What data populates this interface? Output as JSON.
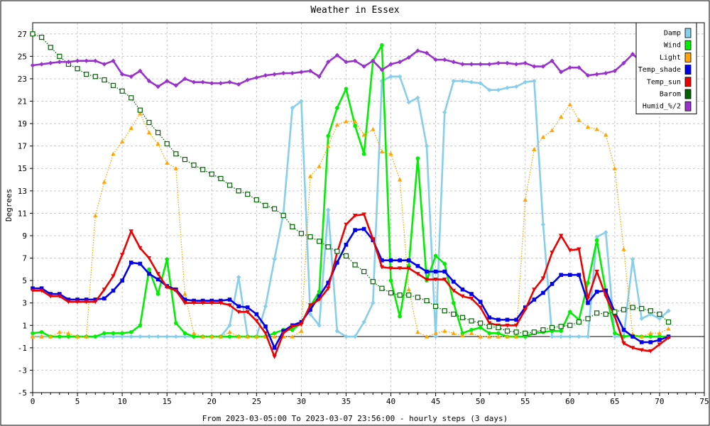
{
  "chart_data": {
    "type": "line",
    "title": "Weather in Essex",
    "xlabel": "From 2023-03-05:00 To 2023-03-07 23:56:00 - hourly steps (3 days)",
    "ylabel": "Degrees",
    "xlim": [
      0,
      75
    ],
    "ylim": [
      -5,
      28
    ],
    "xticks": [
      0,
      5,
      10,
      15,
      20,
      25,
      30,
      35,
      40,
      45,
      50,
      55,
      60,
      65,
      70,
      75
    ],
    "yticks": [
      -5,
      -3,
      -1,
      1,
      3,
      5,
      7,
      9,
      11,
      13,
      15,
      17,
      19,
      21,
      23,
      25,
      27
    ],
    "grid": true,
    "legend_position": "top-right",
    "series": [
      {
        "name": "Damp",
        "color": "#87ceeb",
        "marker": "diamond",
        "dash": "solid",
        "values": [
          0,
          0,
          0,
          0,
          0,
          0,
          0,
          0,
          0,
          0,
          0,
          0,
          0,
          0,
          0,
          0,
          0,
          0,
          0,
          0,
          0,
          0,
          1,
          5.3,
          0,
          0,
          2.7,
          6.9,
          11,
          20.4,
          21,
          2,
          1,
          11.3,
          0.5,
          0,
          0,
          1.3,
          3,
          22.8,
          23.2,
          23.2,
          20.9,
          21.3,
          17,
          0,
          20,
          22.8,
          22.8,
          22.7,
          22.6,
          22,
          22,
          22.2,
          22.3,
          22.7,
          22.8,
          10,
          0,
          0,
          0,
          0,
          0,
          8.9,
          9.3,
          0,
          0,
          6.9,
          1.6,
          2,
          1.6,
          2.3
        ]
      },
      {
        "name": "Wind",
        "color": "#00ee00",
        "marker": "circle",
        "dash": "solid",
        "values": [
          0.3,
          0.4,
          0,
          0,
          0,
          0,
          0,
          0,
          0.3,
          0.3,
          0.3,
          0.4,
          1,
          6,
          3.8,
          6.9,
          1.2,
          0.3,
          0,
          0,
          0,
          0,
          0,
          0,
          0,
          0,
          0,
          0.3,
          0.6,
          0.6,
          1.2,
          2.7,
          4,
          17.9,
          20.4,
          22.1,
          18.8,
          16.3,
          24.6,
          26,
          5,
          1.8,
          6.3,
          15.9,
          5,
          7.2,
          6.5,
          3,
          0.3,
          0.6,
          0.8,
          0.3,
          0.3,
          0,
          0,
          0,
          0.3,
          0.4,
          0.5,
          0.5,
          2.2,
          1.5,
          4.8,
          8.6,
          4,
          0.3,
          0,
          0.1,
          0,
          0,
          0,
          0
        ]
      },
      {
        "name": "Light",
        "color": "#ffa500",
        "marker": "triangle-up",
        "dash": "dotted",
        "values": [
          0,
          0,
          0,
          0.4,
          0.3,
          0,
          0,
          10.8,
          13.8,
          16.3,
          17.4,
          18.6,
          19.9,
          18.2,
          17.2,
          15.5,
          15,
          3.8,
          0.3,
          0,
          0,
          0,
          0.4,
          0,
          0,
          0,
          0,
          0,
          0,
          0,
          0.5,
          14.3,
          15.2,
          17,
          18.9,
          19.2,
          19.2,
          18,
          18.5,
          16.5,
          16.3,
          14,
          4.2,
          0.4,
          0,
          0.3,
          0.5,
          0.3,
          0.1,
          0.3,
          0,
          0,
          0,
          0,
          0,
          12.2,
          16.7,
          17.8,
          18.4,
          19.6,
          20.7,
          19.3,
          18.7,
          18.5,
          18,
          15,
          7.8,
          0.2,
          0,
          0.3,
          0.3,
          0.7
        ]
      },
      {
        "name": "Temp_shade",
        "color": "#0000ee",
        "marker": "square",
        "dash": "solid",
        "values": [
          4.3,
          4.3,
          3.8,
          3.8,
          3.3,
          3.3,
          3.3,
          3.3,
          3.4,
          4.1,
          5,
          6.6,
          6.5,
          5.6,
          5.1,
          4.5,
          4.2,
          3.3,
          3.2,
          3.2,
          3.2,
          3.2,
          3.3,
          2.7,
          2.6,
          2,
          0.9,
          -1,
          0.5,
          1,
          1.3,
          2.4,
          3.6,
          4.8,
          6.6,
          8.2,
          9.5,
          9.6,
          8.6,
          6.8,
          6.8,
          6.8,
          6.8,
          6.3,
          5.8,
          5.8,
          5.8,
          4.9,
          4.2,
          3.8,
          3.1,
          1.7,
          1.5,
          1.5,
          1.5,
          2.6,
          3.3,
          3.9,
          4.7,
          5.5,
          5.5,
          5.5,
          3,
          4,
          4.1,
          2.2,
          0.6,
          0,
          -0.5,
          -0.5,
          -0.3,
          0
        ]
      },
      {
        "name": "Temp_sun",
        "color": "#ee0000",
        "marker": "triangle-down",
        "dash": "solid",
        "values": [
          4.1,
          4.1,
          3.6,
          3.6,
          3.1,
          3.1,
          3.1,
          3.1,
          4.2,
          5.4,
          7.3,
          9.4,
          7.9,
          7,
          5.6,
          4.4,
          4.1,
          3,
          3,
          3,
          3,
          3,
          2.8,
          2.2,
          2.2,
          1.4,
          0.3,
          -1.8,
          0.3,
          0.9,
          1.1,
          2.8,
          3.3,
          4.3,
          7.5,
          10,
          10.8,
          10.9,
          8.7,
          6.2,
          6.1,
          6.1,
          6.1,
          5.6,
          5.1,
          5.1,
          5.1,
          4.1,
          3.6,
          3.4,
          2.6,
          1.2,
          1,
          1,
          1,
          2.4,
          4.2,
          5.2,
          7.5,
          9,
          7.7,
          7.8,
          3.4,
          5.8,
          3.6,
          1.8,
          -0.6,
          -1,
          -1.2,
          -1.3,
          -0.7,
          -0.1
        ]
      },
      {
        "name": "Barom",
        "color": "#006400",
        "marker": "open-square",
        "dash": "dotted",
        "values": [
          27,
          26.7,
          25.8,
          25,
          24.3,
          23.9,
          23.4,
          23.2,
          22.9,
          22.4,
          21.9,
          21.3,
          20.2,
          19.1,
          18.2,
          17.2,
          16.3,
          15.8,
          15.3,
          14.9,
          14.5,
          14.1,
          13.5,
          13,
          12.7,
          12.2,
          11.7,
          11.4,
          10.8,
          9.8,
          9.2,
          8.9,
          8.5,
          8,
          7.6,
          7.2,
          6.4,
          5.8,
          4.9,
          4.3,
          3.9,
          3.7,
          3.7,
          3.5,
          3.2,
          2.7,
          2.3,
          2,
          1.7,
          1.4,
          1.2,
          0.9,
          0.8,
          0.5,
          0.4,
          0.3,
          0.4,
          0.6,
          0.8,
          0.9,
          1,
          1.3,
          1.6,
          2.1,
          2,
          2.2,
          2.4,
          2.6,
          2.5,
          2.3,
          2,
          1.3
        ]
      },
      {
        "name": "Humid_%/2",
        "color": "#9932cc",
        "marker": "diamond",
        "dash": "solid",
        "values": [
          24.2,
          24.3,
          24.4,
          24.5,
          24.5,
          24.6,
          24.6,
          24.6,
          24.3,
          24.6,
          23.4,
          23.2,
          23.7,
          22.8,
          22.3,
          22.8,
          22.4,
          23,
          22.7,
          22.7,
          22.6,
          22.6,
          22.7,
          22.5,
          22.9,
          23.1,
          23.3,
          23.4,
          23.5,
          23.5,
          23.6,
          23.7,
          23.2,
          24.5,
          25.1,
          24.5,
          24.6,
          24.1,
          24.6,
          23.8,
          24.3,
          24.5,
          24.9,
          25.5,
          25.3,
          24.7,
          24.7,
          24.5,
          24.3,
          24.3,
          24.3,
          24.3,
          24.4,
          24.4,
          24.3,
          24.4,
          24.1,
          24.1,
          24.6,
          23.6,
          24,
          24,
          23.3,
          23.4,
          23.5,
          23.7,
          24.4,
          25.2,
          24.5,
          24,
          24.2,
          23.8
        ]
      }
    ]
  }
}
